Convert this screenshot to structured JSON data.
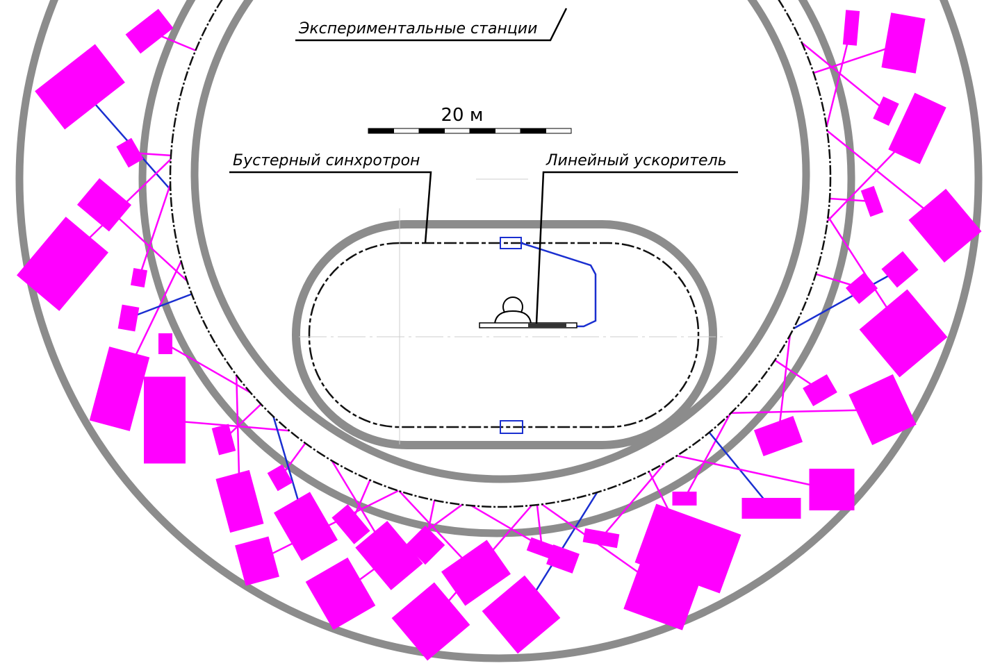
{
  "labels": {
    "experimental_stations": "Экспериментальные станции",
    "scale": "20 м",
    "booster": "Бустерный синхротрон",
    "linac": "Линейный ускоритель"
  }
}
